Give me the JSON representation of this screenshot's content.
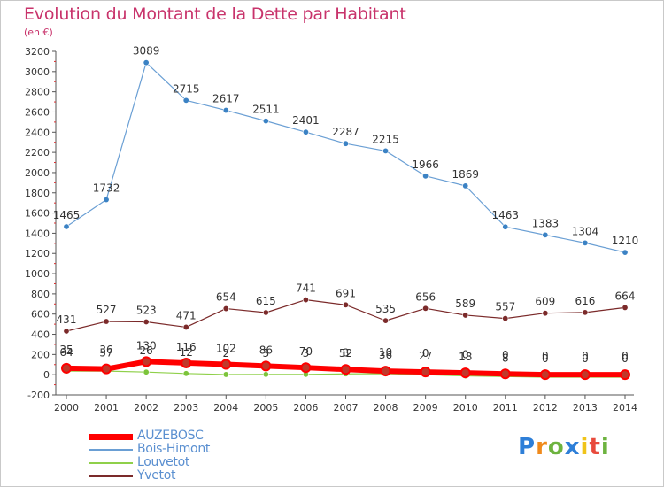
{
  "title": "Evolution du Montant de la Dette par Habitant",
  "subtitle": "(en €)",
  "logo": {
    "letters": [
      "P",
      "r",
      "o",
      "x",
      "i",
      "t",
      "i"
    ]
  },
  "chart_data": {
    "type": "line",
    "x": [
      "2000",
      "2001",
      "2002",
      "2003",
      "2004",
      "2005",
      "2006",
      "2007",
      "2008",
      "2009",
      "2010",
      "2011",
      "2012",
      "2013",
      "2014"
    ],
    "ylim": [
      -200,
      3200
    ],
    "yticks": [
      -200,
      0,
      200,
      400,
      600,
      800,
      1000,
      1200,
      1400,
      1600,
      1800,
      2000,
      2200,
      2400,
      2600,
      2800,
      3000,
      3200
    ],
    "grid": false,
    "legend_position": "bottom-left",
    "series": [
      {
        "name": "AUZEBOSC",
        "color": "#ff0000",
        "marker": "#c0392b",
        "width": 6,
        "labels": true,
        "values": [
          64,
          57,
          130,
          116,
          102,
          86,
          70,
          52,
          36,
          27,
          18,
          8,
          0,
          0,
          0
        ],
        "display_values": [
          64,
          57,
          130,
          116,
          102,
          86,
          70,
          52,
          36,
          27,
          18,
          8,
          0,
          0,
          0
        ]
      },
      {
        "name": "Bois-Himont",
        "color": "#6a9fd4",
        "marker": "#3b82c4",
        "width": 1.2,
        "labels": true,
        "values": [
          1465,
          1732,
          3089,
          2715,
          2617,
          2511,
          2401,
          2287,
          2215,
          1966,
          1869,
          1463,
          1383,
          1304,
          1210
        ],
        "display_values": [
          1465,
          1732,
          3089,
          2715,
          2617,
          2511,
          2401,
          2287,
          2215,
          1966,
          1869,
          1463,
          1383,
          1304,
          1210
        ]
      },
      {
        "name": "Louvetot",
        "color": "#8fd04a",
        "marker": "#7cc43b",
        "width": 1.2,
        "labels": true,
        "values": [
          35,
          36,
          26,
          12,
          2,
          3,
          3,
          8,
          10,
          0,
          -12,
          -18,
          -25,
          -25,
          -25
        ],
        "display_values": [
          35,
          36,
          26,
          12,
          2,
          3,
          3,
          8,
          10,
          0,
          0,
          0,
          0,
          0,
          0
        ]
      },
      {
        "name": "Yvetot",
        "color": "#7b2a2a",
        "marker": "#7b2a2a",
        "width": 1.2,
        "labels": true,
        "values": [
          431,
          527,
          523,
          471,
          654,
          615,
          741,
          691,
          535,
          656,
          589,
          557,
          609,
          616,
          664
        ],
        "display_values": [
          431,
          527,
          523,
          471,
          654,
          615,
          741,
          691,
          535,
          656,
          589,
          557,
          609,
          616,
          664
        ]
      }
    ]
  }
}
